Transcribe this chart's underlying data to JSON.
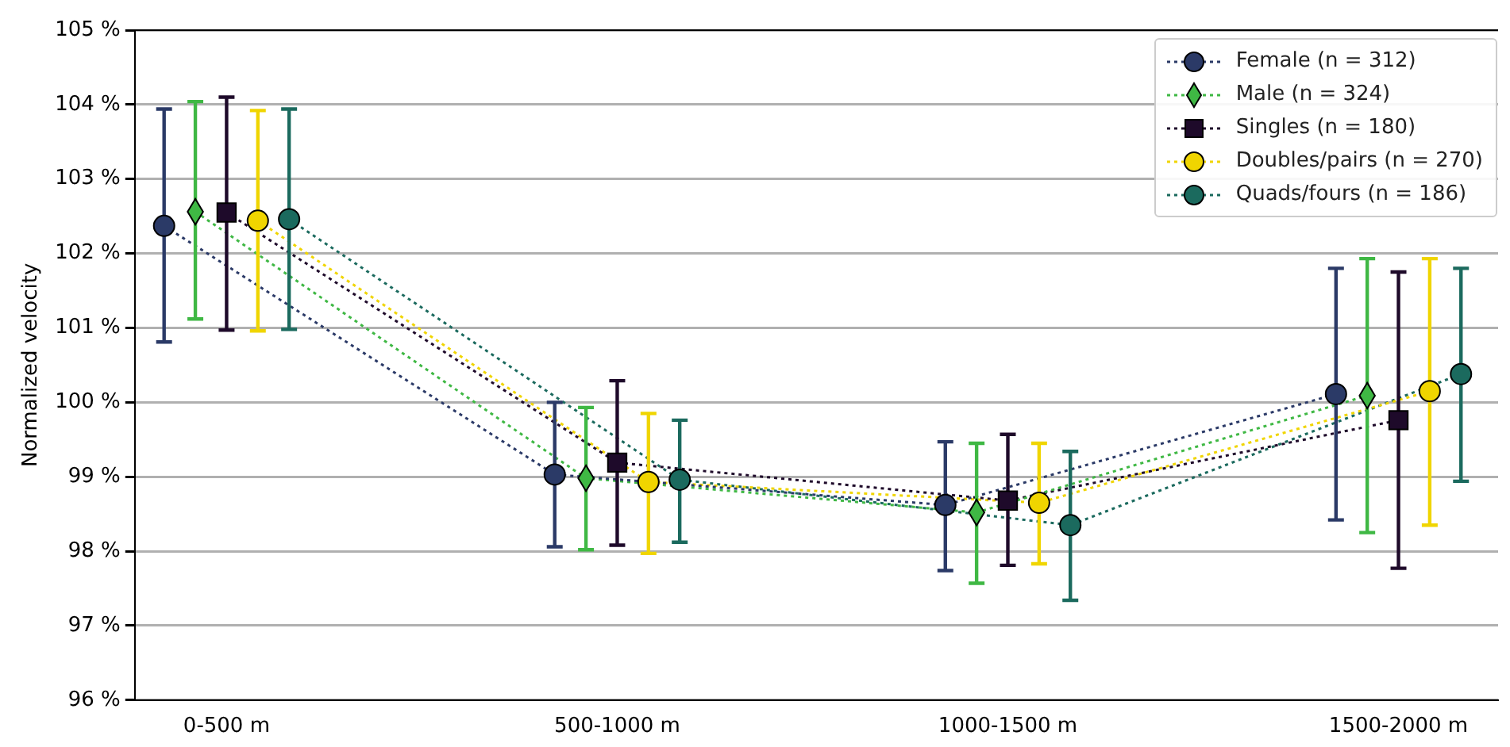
{
  "chart_data": {
    "type": "line",
    "ylabel": "Normalized velocity",
    "categories": [
      "0-500 m",
      "500-1000 m",
      "1000-1500 m",
      "1500-2000 m"
    ],
    "ylim": [
      96,
      105
    ],
    "yticks": [
      {
        "value": 96,
        "label": "96 %"
      },
      {
        "value": 97,
        "label": "97 %"
      },
      {
        "value": 98,
        "label": "98 %"
      },
      {
        "value": 99,
        "label": "99 %"
      },
      {
        "value": 100,
        "label": "100 %"
      },
      {
        "value": 101,
        "label": "101 %"
      },
      {
        "value": 102,
        "label": "102 %"
      },
      {
        "value": 103,
        "label": "103 %"
      },
      {
        "value": 104,
        "label": "104 %"
      },
      {
        "value": 105,
        "label": "105 %"
      }
    ],
    "grid": "y",
    "legend": "top right",
    "line_style": "dotted",
    "series": [
      {
        "name": "Female (n = 312)",
        "color": "#2b3a67",
        "marker": "circle",
        "values": [
          102.37,
          99.03,
          98.62,
          100.11
        ],
        "errors": [
          [
            100.81,
            103.94
          ],
          [
            98.06,
            100.0
          ],
          [
            97.74,
            99.47
          ],
          [
            98.42,
            101.8
          ]
        ]
      },
      {
        "name": "Male (n = 324)",
        "color": "#3fb844",
        "marker": "diamond",
        "values": [
          102.56,
          98.98,
          98.52,
          100.09
        ],
        "errors": [
          [
            101.12,
            104.04
          ],
          [
            98.02,
            99.93
          ],
          [
            97.57,
            99.45
          ],
          [
            98.25,
            101.93
          ]
        ]
      },
      {
        "name": "Singles (n = 180)",
        "color": "#1e0a2a",
        "marker": "square",
        "values": [
          102.55,
          99.19,
          98.68,
          99.76
        ],
        "errors": [
          [
            100.97,
            104.1
          ],
          [
            98.08,
            100.29
          ],
          [
            97.81,
            99.57
          ],
          [
            97.77,
            101.75
          ]
        ]
      },
      {
        "name": "Doubles/pairs (n = 270)",
        "color": "#f0d500",
        "marker": "circle",
        "values": [
          102.44,
          98.93,
          98.65,
          100.15
        ],
        "errors": [
          [
            100.96,
            103.92
          ],
          [
            97.97,
            99.85
          ],
          [
            97.83,
            99.45
          ],
          [
            98.35,
            101.93
          ]
        ]
      },
      {
        "name": "Quads/fours (n = 186)",
        "color": "#1b6a5e",
        "marker": "circle",
        "values": [
          102.46,
          98.96,
          98.35,
          100.38
        ],
        "errors": [
          [
            100.98,
            103.94
          ],
          [
            98.12,
            99.76
          ],
          [
            97.34,
            99.34
          ],
          [
            98.94,
            101.8
          ]
        ]
      }
    ]
  }
}
